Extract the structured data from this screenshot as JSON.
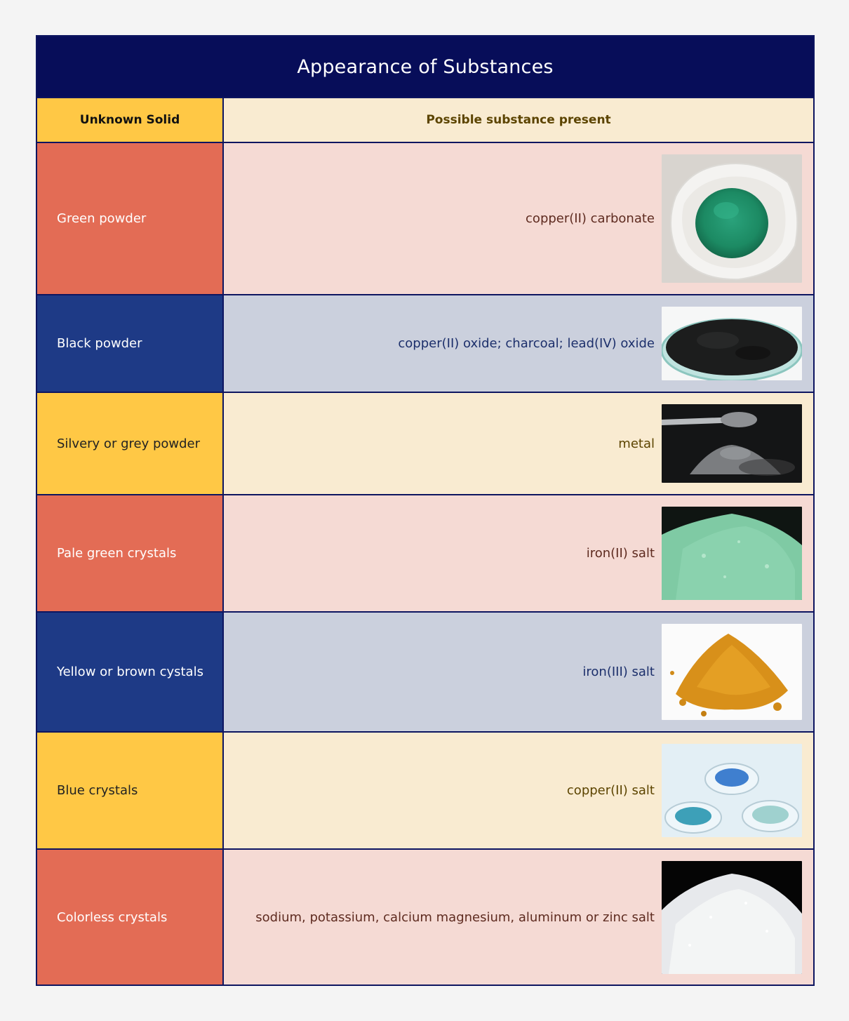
{
  "title": "Appearance of Substances",
  "headers": {
    "solid": "Unknown Solid",
    "substance": "Possible substance present"
  },
  "rows": [
    {
      "solid": "Green powder",
      "substance": "copper(II) carbonate",
      "theme": "red",
      "image": "green-powder-photo"
    },
    {
      "solid": "Black powder",
      "substance": "copper(II) oxide; charcoal; lead(IV) oxide",
      "theme": "navy",
      "image": "black-powder-photo"
    },
    {
      "solid": "Silvery or grey powder",
      "substance": "metal",
      "theme": "yellow",
      "image": "grey-powder-photo"
    },
    {
      "solid": "Pale green crystals",
      "substance": "iron(II) salt",
      "theme": "red",
      "image": "pale-green-crystals-photo"
    },
    {
      "solid": "Yellow or brown cystals",
      "substance": "iron(III) salt",
      "theme": "navy",
      "image": "yellow-brown-powder-photo"
    },
    {
      "solid": "Blue crystals",
      "substance": "copper(II) salt",
      "theme": "yellow",
      "image": "blue-crystals-photo"
    },
    {
      "solid": "Colorless crystals",
      "substance": "sodium, potassium, calcium magnesium, aluminum or zinc salt",
      "theme": "red",
      "image": "colorless-crystals-photo"
    }
  ]
}
